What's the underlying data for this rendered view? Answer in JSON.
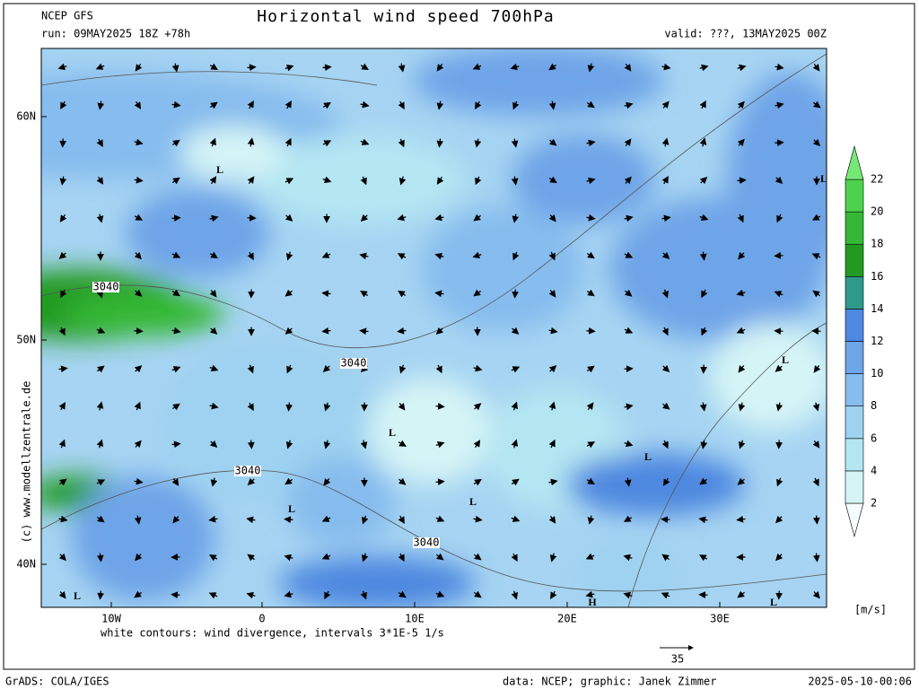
{
  "header": {
    "model": "NCEP GFS",
    "title": "Horizontal wind speed 700hPa",
    "run": "run: 09MAY2025 18Z +78h",
    "valid": "valid: ???, 13MAY2025 00Z"
  },
  "map": {
    "lat_labels": [
      "60N",
      "50N",
      "40N"
    ],
    "lon_labels": [
      "10W",
      "0",
      "10E",
      "20E",
      "30E"
    ],
    "contour_labels": [
      "3040",
      "3040",
      "3040",
      "3040"
    ],
    "pressure_labels": [
      "L",
      "L",
      "L",
      "L",
      "L",
      "L",
      "L",
      "L",
      "L",
      "H"
    ],
    "watermark": "(c) www.modellzentrale.de"
  },
  "legend": {
    "levels": [
      2,
      4,
      6,
      8,
      10,
      12,
      14,
      16,
      18,
      20,
      22
    ],
    "colors": [
      "#f4fcfc",
      "#d4f4f6",
      "#b4e6f2",
      "#9ed2f0",
      "#86bcee",
      "#6ea4e8",
      "#4e88e0",
      "#2e9a8a",
      "#229a22",
      "#36b836",
      "#4ed24e",
      "#76e876"
    ],
    "unit": "[m/s]"
  },
  "footer": {
    "note": "white contours: wind divergence, intervals 3*1E-5 1/s",
    "reference_vector": "35",
    "software": "GrADS: COLA/IGES",
    "credits": "data: NCEP; graphic: Janek Zimmer",
    "timestamp": "2025-05-10-00:06"
  }
}
